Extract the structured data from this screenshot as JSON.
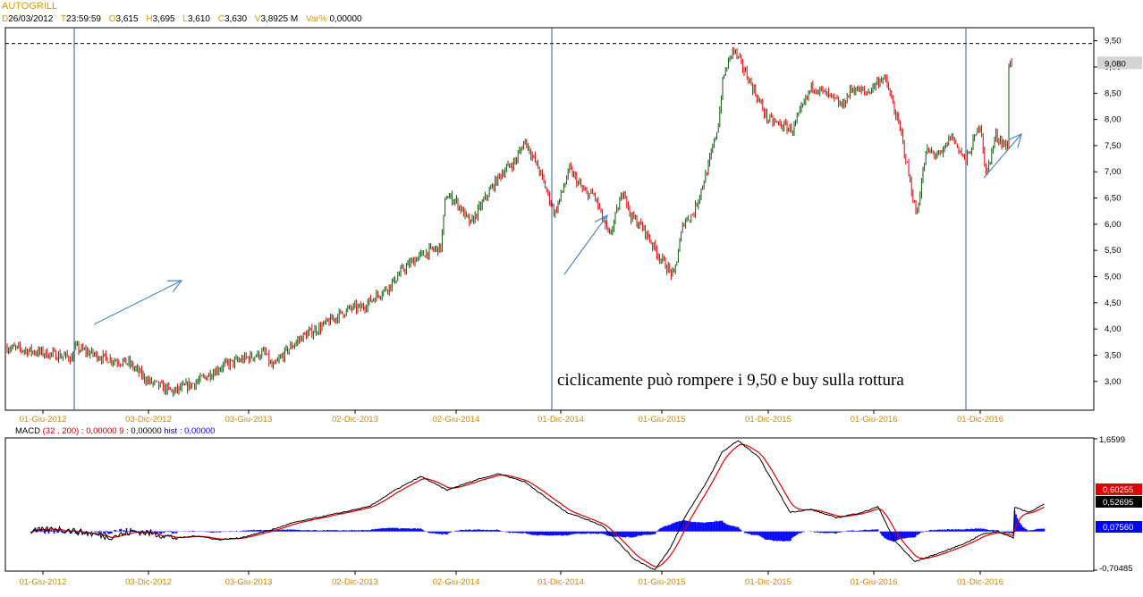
{
  "header": {
    "title": "AUTOGRILL",
    "fields": [
      {
        "key": "D",
        "value": "26/03/2012"
      },
      {
        "key": "T",
        "value": "23:59:59"
      },
      {
        "key": "O",
        "value": "3,615"
      },
      {
        "key": "H",
        "value": "3,695"
      },
      {
        "key": "L",
        "value": "3,610"
      },
      {
        "key": "C",
        "value": "3,630"
      },
      {
        "key": "V",
        "value": "3,8925 M"
      },
      {
        "key": "Var%",
        "value": "0,00000"
      }
    ]
  },
  "colors": {
    "candle_down": "#e00000",
    "candle_up": "#0a5a0a",
    "macd_line": "#000000",
    "signal_line": "#e00000",
    "hist": "#0000ff",
    "vline": "#1f5fa8",
    "arrow": "#4a86c8",
    "axis_label": "#cc8800"
  },
  "chart_data": [
    {
      "type": "candlestick",
      "title": "AUTOGRILL",
      "x_ticks": [
        "01-Giu-2012",
        "03-Dic-2012",
        "03-Giu-2013",
        "02-Dic-2013",
        "02-Giu-2014",
        "01-Dic-2014",
        "01-Giu-2015",
        "01-Dic-2015",
        "01-Giu-2016",
        "01-Dic-2016"
      ],
      "y_ticks": [
        "9,50",
        "9,00",
        "8,50",
        "8,00",
        "7,50",
        "7,00",
        "6,50",
        "6,00",
        "5,50",
        "5,00",
        "4,50",
        "4,00",
        "3,50",
        "3,00"
      ],
      "ylim": [
        2.45,
        9.75
      ],
      "price_series": {
        "t": [
          0,
          0.6,
          1.1,
          1.5,
          2.0,
          2.5,
          3.0,
          3.5,
          3.85,
          4.0,
          4.3,
          4.6,
          5.0,
          5.4,
          5.6,
          5.8,
          6.05,
          6.2,
          6.4,
          6.6,
          6.9,
          7.2,
          7.4,
          7.5,
          7.7,
          8.0,
          8.3,
          8.5,
          8.65,
          8.9,
          9.1,
          9.4,
          9.7,
          10.0,
          10.3,
          10.5,
          10.8,
          11.1,
          11.2,
          11.5,
          11.8,
          12.1,
          12.3,
          12.5,
          12.8,
          13.0,
          13.1,
          13.3,
          13.6,
          14.0,
          14.5,
          14.9,
          15.3,
          15.5,
          15.7,
          16.0,
          16.3,
          16.4,
          16.7,
          17.0,
          17.2,
          17.5,
          17.7,
          18.0,
          18.3,
          18.4,
          18.6,
          18.85
        ],
        "close": [
          3.65,
          3.45,
          3.35,
          3.0,
          2.8,
          3.0,
          3.3,
          3.45,
          3.55,
          3.25,
          3.6,
          3.85,
          4.05,
          4.3,
          4.4,
          4.4,
          4.6,
          4.7,
          4.85,
          5.1,
          5.35,
          5.5,
          5.55,
          6.55,
          6.45,
          6.0,
          6.5,
          6.8,
          7.0,
          7.2,
          7.6,
          7.0,
          6.2,
          7.05,
          6.6,
          6.55,
          5.75,
          6.7,
          6.2,
          5.9,
          5.4,
          5.0,
          6.05,
          6.2,
          7.1,
          7.9,
          8.8,
          9.35,
          8.8,
          8.0,
          7.8,
          8.65,
          8.4,
          8.25,
          8.6,
          8.5,
          8.8,
          8.7,
          7.7,
          6.15,
          7.4,
          7.3,
          7.7,
          7.2,
          7.95,
          6.9,
          7.7,
          7.45
        ],
        "last": 9.08,
        "last_label": "9,080"
      },
      "reference_line": {
        "value": 9.45,
        "style": "dashed"
      },
      "vertical_markers": [
        "01-Giu-2012",
        "01-Dic-2014",
        "01-Dic-2016"
      ],
      "annotation": "ciclicamente può rompere i 9,50 e buy sulla rottura"
    },
    {
      "type": "line",
      "title": "MACD",
      "params_label": "MACD",
      "params": "(32 , 200) :",
      "macd_value": "0,00000",
      "signal_period": "9 :",
      "signal_value": "0,00000",
      "hist_label": "hist :",
      "hist_value": "0,00000",
      "x_ticks": [
        "01-Giu-2012",
        "03-Dic-2012",
        "03-Giu-2013",
        "02-Dic-2013",
        "02-Giu-2014",
        "01-Dic-2014",
        "01-Giu-2015",
        "01-Dic-2015",
        "01-Giu-2016",
        "01-Dic-2016"
      ],
      "y_ticks": [
        "1,6599",
        "-0,70485"
      ],
      "ylim": [
        -0.72,
        1.7
      ],
      "macd_series": {
        "t": [
          0,
          0.5,
          1.0,
          1.5,
          2.0,
          2.4,
          2.8,
          3.2,
          3.6,
          4.0,
          4.3,
          4.7,
          5.0,
          5.5,
          6.0,
          6.5,
          7.0,
          7.5,
          8.0,
          8.3,
          8.6,
          9.0,
          9.5,
          10.0,
          10.3,
          10.6,
          11.0,
          11.3,
          11.6,
          12.0,
          12.3,
          12.6,
          13.0,
          13.3,
          13.6,
          14.0,
          14.3,
          14.6,
          15.0,
          15.5,
          16.0,
          16.3,
          16.6,
          17.0,
          17.3,
          17.6,
          18.0,
          18.3,
          18.6,
          18.9
        ],
        "macd": [
          0,
          0.05,
          -0.02,
          -0.1,
          0.0,
          -0.05,
          -0.12,
          -0.08,
          -0.15,
          -0.12,
          -0.05,
          0.05,
          0.15,
          0.25,
          0.35,
          0.45,
          0.75,
          1.0,
          0.75,
          0.85,
          0.95,
          1.05,
          0.9,
          0.55,
          0.35,
          0.25,
          0.1,
          -0.2,
          -0.5,
          -0.7,
          -0.3,
          0.3,
          0.9,
          1.45,
          1.65,
          1.35,
          0.85,
          0.35,
          0.4,
          0.25,
          0.35,
          0.45,
          -0.15,
          -0.55,
          -0.45,
          -0.35,
          -0.2,
          -0.05,
          0.0,
          -0.12
        ],
        "macd_tail": [
          0.45,
          0.35,
          0.5
        ],
        "macd_last": "0,60255",
        "signal_last": "0,52695",
        "hist_last": "0,07560"
      }
    }
  ]
}
